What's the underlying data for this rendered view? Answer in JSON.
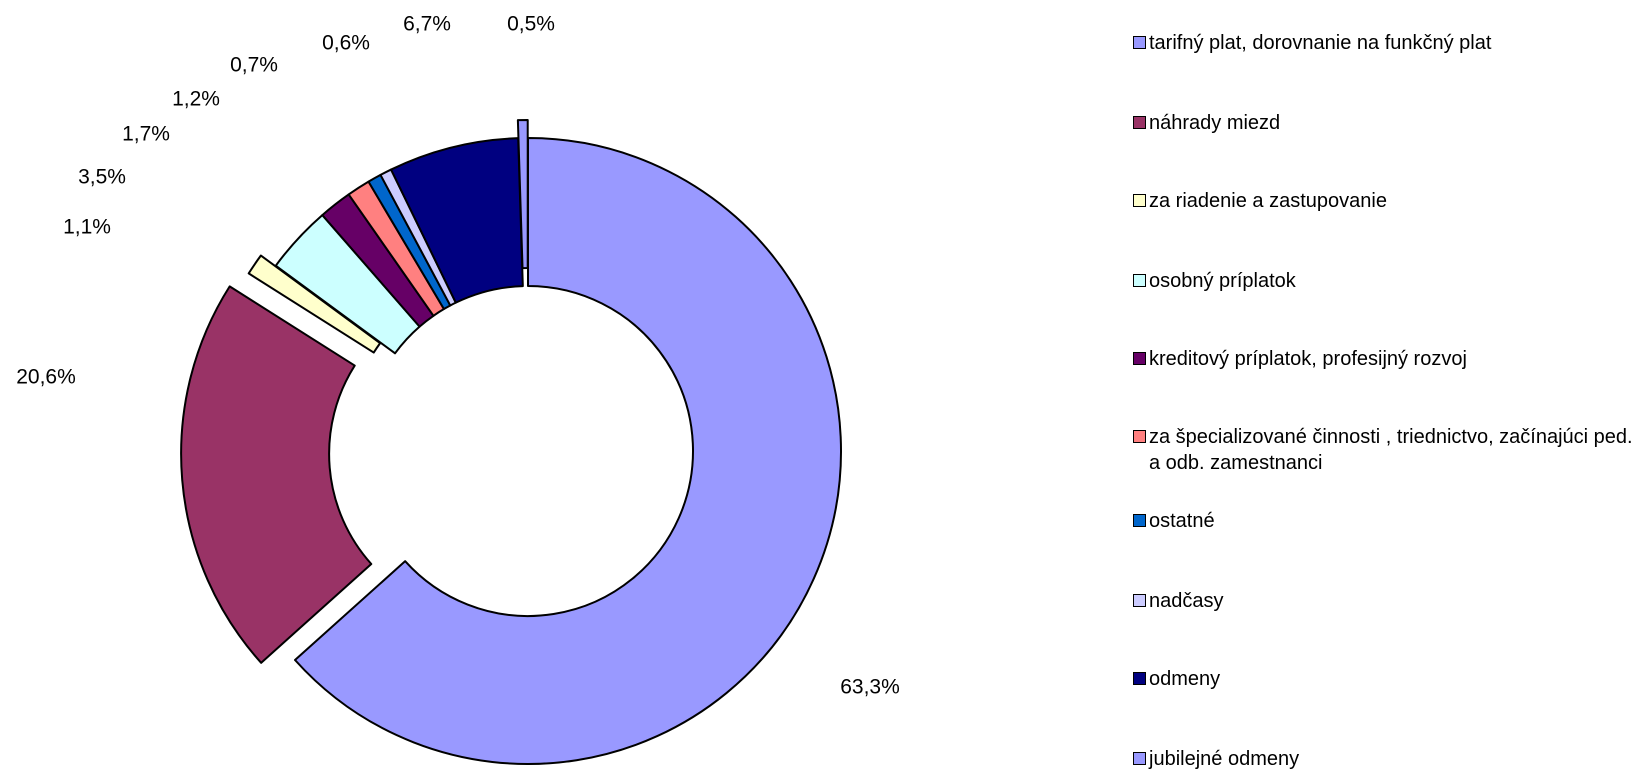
{
  "chart_data": {
    "type": "pie",
    "subtype": "donut",
    "series": [
      {
        "label": "tarifný plat, dorovnanie na funkčný plat",
        "value": 63.3,
        "display": "63,3%",
        "color": "#9999FF"
      },
      {
        "label": "náhrady miezd",
        "value": 20.6,
        "display": "20,6%",
        "color": "#993366"
      },
      {
        "label": "za riadenie a zastupovanie",
        "value": 1.1,
        "display": "1,1%",
        "color": "#FFFFCC"
      },
      {
        "label": "osobný príplatok",
        "value": 3.5,
        "display": "3,5%",
        "color": "#CCFFFF"
      },
      {
        "label": "kreditový príplatok, profesijný rozvoj",
        "value": 1.7,
        "display": "1,7%",
        "color": "#660066"
      },
      {
        "label": "za špecializované činnosti , triednictvo, začínajúci ped. a odb. zamestnanci",
        "value": 1.2,
        "display": "1,2%",
        "color": "#FF8080"
      },
      {
        "label": "ostatné",
        "value": 0.7,
        "display": "0,7%",
        "color": "#0066CC"
      },
      {
        "label": "nadčasy",
        "value": 0.6,
        "display": "0,6%",
        "color": "#CCCCFF"
      },
      {
        "label": "odmeny",
        "value": 6.7,
        "display": "6,7%",
        "color": "#000080"
      },
      {
        "label": "jubilejné odmeny",
        "value": 0.5,
        "display": "0,5%",
        "color": "#9999FF"
      }
    ],
    "legend_position": "right"
  }
}
